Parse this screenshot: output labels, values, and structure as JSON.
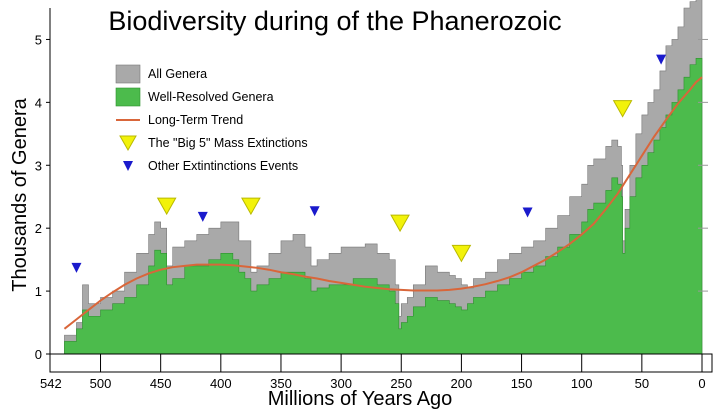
{
  "chart_data": {
    "type": "area",
    "title": "Biodiversity during of the Phanerozoic",
    "xlabel": "Millions of Years Ago",
    "ylabel": "Thousands of Genera",
    "xlim": [
      542,
      0
    ],
    "ylim": [
      0,
      5.5
    ],
    "x_ticks": [
      542,
      500,
      450,
      400,
      350,
      300,
      250,
      200,
      150,
      100,
      50,
      0
    ],
    "y_ticks": [
      0,
      1,
      2,
      3,
      4,
      5
    ],
    "legend_position": "top-left",
    "legend": [
      {
        "label": "All Genera",
        "key": "all"
      },
      {
        "label": "Well-Resolved Genera",
        "key": "resolved"
      },
      {
        "label": "Long-Term Trend",
        "key": "trend"
      },
      {
        "label": "The \"Big 5\" Mass Extinctions",
        "key": "big5"
      },
      {
        "label": "Other Extintinctions Events",
        "key": "other"
      }
    ],
    "colors": {
      "all": "#a9a9a9",
      "resolved": "#4cbb4c",
      "trend": "#d9663a",
      "big5": "#f2f20a",
      "other": "#1a1acc"
    },
    "series": [
      {
        "name": "All Genera",
        "key": "all",
        "x": [
          542,
          530,
          520,
          515,
          510,
          500,
          490,
          480,
          470,
          460,
          455,
          450,
          445,
          440,
          430,
          420,
          410,
          400,
          390,
          385,
          380,
          375,
          370,
          360,
          350,
          340,
          330,
          325,
          320,
          310,
          300,
          290,
          280,
          270,
          260,
          255,
          252,
          250,
          245,
          240,
          230,
          220,
          210,
          205,
          200,
          195,
          190,
          180,
          170,
          160,
          150,
          140,
          130,
          120,
          110,
          100,
          95,
          90,
          80,
          75,
          70,
          67,
          66,
          64,
          60,
          55,
          50,
          45,
          40,
          35,
          30,
          25,
          20,
          15,
          10,
          5,
          0
        ],
        "y": [
          0,
          0.3,
          0.5,
          1.1,
          0.8,
          0.9,
          1.0,
          1.3,
          1.6,
          1.9,
          2.1,
          2.0,
          1.4,
          1.7,
          1.8,
          1.9,
          2.0,
          2.1,
          2.1,
          1.8,
          1.8,
          1.3,
          1.4,
          1.6,
          1.8,
          1.9,
          1.7,
          1.4,
          1.5,
          1.6,
          1.7,
          1.7,
          1.75,
          1.6,
          1.5,
          1.1,
          0.6,
          0.8,
          0.9,
          1.1,
          1.4,
          1.3,
          1.25,
          1.2,
          1.1,
          1.05,
          1.2,
          1.3,
          1.5,
          1.6,
          1.7,
          1.8,
          2.0,
          2.2,
          2.5,
          2.7,
          3.0,
          3.1,
          3.3,
          3.4,
          3.3,
          3.0,
          1.8,
          2.3,
          3.0,
          3.5,
          3.8,
          4.0,
          4.2,
          4.5,
          4.9,
          5.0,
          5.2,
          5.5,
          5.6,
          5.7,
          5.8
        ]
      },
      {
        "name": "Well-Resolved Genera",
        "key": "resolved",
        "x": [
          542,
          530,
          520,
          515,
          510,
          500,
          490,
          480,
          470,
          460,
          455,
          450,
          445,
          440,
          430,
          420,
          410,
          400,
          390,
          385,
          380,
          375,
          370,
          360,
          350,
          340,
          330,
          325,
          320,
          310,
          300,
          290,
          280,
          270,
          260,
          255,
          252,
          250,
          245,
          240,
          230,
          220,
          210,
          205,
          200,
          195,
          190,
          180,
          170,
          160,
          150,
          140,
          130,
          120,
          110,
          100,
          95,
          90,
          80,
          75,
          70,
          67,
          66,
          64,
          60,
          55,
          50,
          45,
          40,
          35,
          30,
          25,
          20,
          15,
          10,
          5,
          0
        ],
        "y": [
          0,
          0.2,
          0.4,
          0.7,
          0.6,
          0.7,
          0.8,
          0.9,
          1.1,
          1.4,
          1.65,
          1.6,
          1.1,
          1.2,
          1.4,
          1.4,
          1.5,
          1.6,
          1.5,
          1.3,
          1.2,
          1.0,
          1.1,
          1.2,
          1.3,
          1.3,
          1.2,
          1.0,
          1.05,
          1.1,
          1.1,
          1.2,
          1.2,
          1.1,
          1.0,
          0.8,
          0.4,
          0.5,
          0.6,
          0.75,
          0.9,
          0.85,
          0.8,
          0.75,
          0.7,
          0.8,
          0.9,
          1.0,
          1.1,
          1.2,
          1.3,
          1.4,
          1.55,
          1.7,
          1.9,
          2.1,
          2.3,
          2.4,
          2.6,
          2.8,
          2.7,
          2.5,
          1.6,
          2.0,
          2.5,
          2.8,
          3.0,
          3.2,
          3.4,
          3.6,
          3.8,
          4.0,
          4.2,
          4.4,
          4.6,
          4.7,
          4.7
        ]
      },
      {
        "name": "Long-Term Trend",
        "key": "trend",
        "x": [
          530,
          520,
          510,
          500,
          490,
          480,
          470,
          460,
          450,
          440,
          430,
          420,
          410,
          400,
          390,
          380,
          370,
          360,
          350,
          340,
          330,
          320,
          310,
          300,
          290,
          280,
          270,
          260,
          250,
          240,
          230,
          220,
          210,
          200,
          190,
          180,
          170,
          160,
          150,
          140,
          130,
          120,
          110,
          100,
          90,
          80,
          70,
          60,
          50,
          40,
          30,
          20,
          10,
          5,
          0
        ],
        "y": [
          0.4,
          0.55,
          0.7,
          0.85,
          0.98,
          1.1,
          1.2,
          1.28,
          1.34,
          1.38,
          1.4,
          1.42,
          1.42,
          1.42,
          1.41,
          1.39,
          1.37,
          1.34,
          1.3,
          1.27,
          1.23,
          1.2,
          1.16,
          1.13,
          1.1,
          1.07,
          1.05,
          1.03,
          1.02,
          1.01,
          1.01,
          1.01,
          1.02,
          1.04,
          1.07,
          1.11,
          1.16,
          1.22,
          1.3,
          1.4,
          1.5,
          1.62,
          1.75,
          1.9,
          2.07,
          2.3,
          2.55,
          2.85,
          3.15,
          3.45,
          3.72,
          3.98,
          4.2,
          4.32,
          4.4
        ]
      }
    ],
    "big5_extinctions": [
      {
        "x": 445,
        "y": 2.35
      },
      {
        "x": 375,
        "y": 2.35
      },
      {
        "x": 251,
        "y": 2.08
      },
      {
        "x": 200,
        "y": 1.6
      },
      {
        "x": 66,
        "y": 3.9
      }
    ],
    "other_extinctions": [
      {
        "x": 520,
        "y": 1.37
      },
      {
        "x": 415,
        "y": 2.18
      },
      {
        "x": 322,
        "y": 2.27
      },
      {
        "x": 145,
        "y": 2.25
      },
      {
        "x": 34,
        "y": 4.68
      }
    ]
  }
}
